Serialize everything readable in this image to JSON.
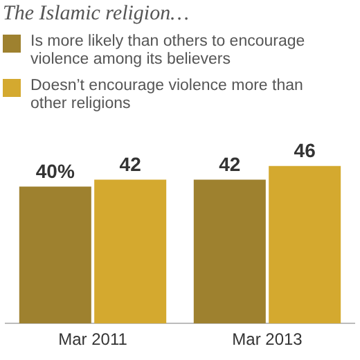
{
  "chart_data": {
    "type": "bar",
    "title": "The Islamic religion…",
    "categories": [
      "Mar 2011",
      "Mar 2013"
    ],
    "series": [
      {
        "name": "Is more likely than others to encourage violence among its believers",
        "color": "#9e812f",
        "values": [
          40,
          42
        ],
        "value_labels": [
          "40%",
          "42"
        ]
      },
      {
        "name": "Doesn’t encourage violence more than other religions",
        "color": "#d4a92f",
        "values": [
          42,
          46
        ],
        "value_labels": [
          "42",
          "46"
        ]
      }
    ],
    "legend": "top left",
    "grid": false,
    "tick_labels": "x"
  }
}
